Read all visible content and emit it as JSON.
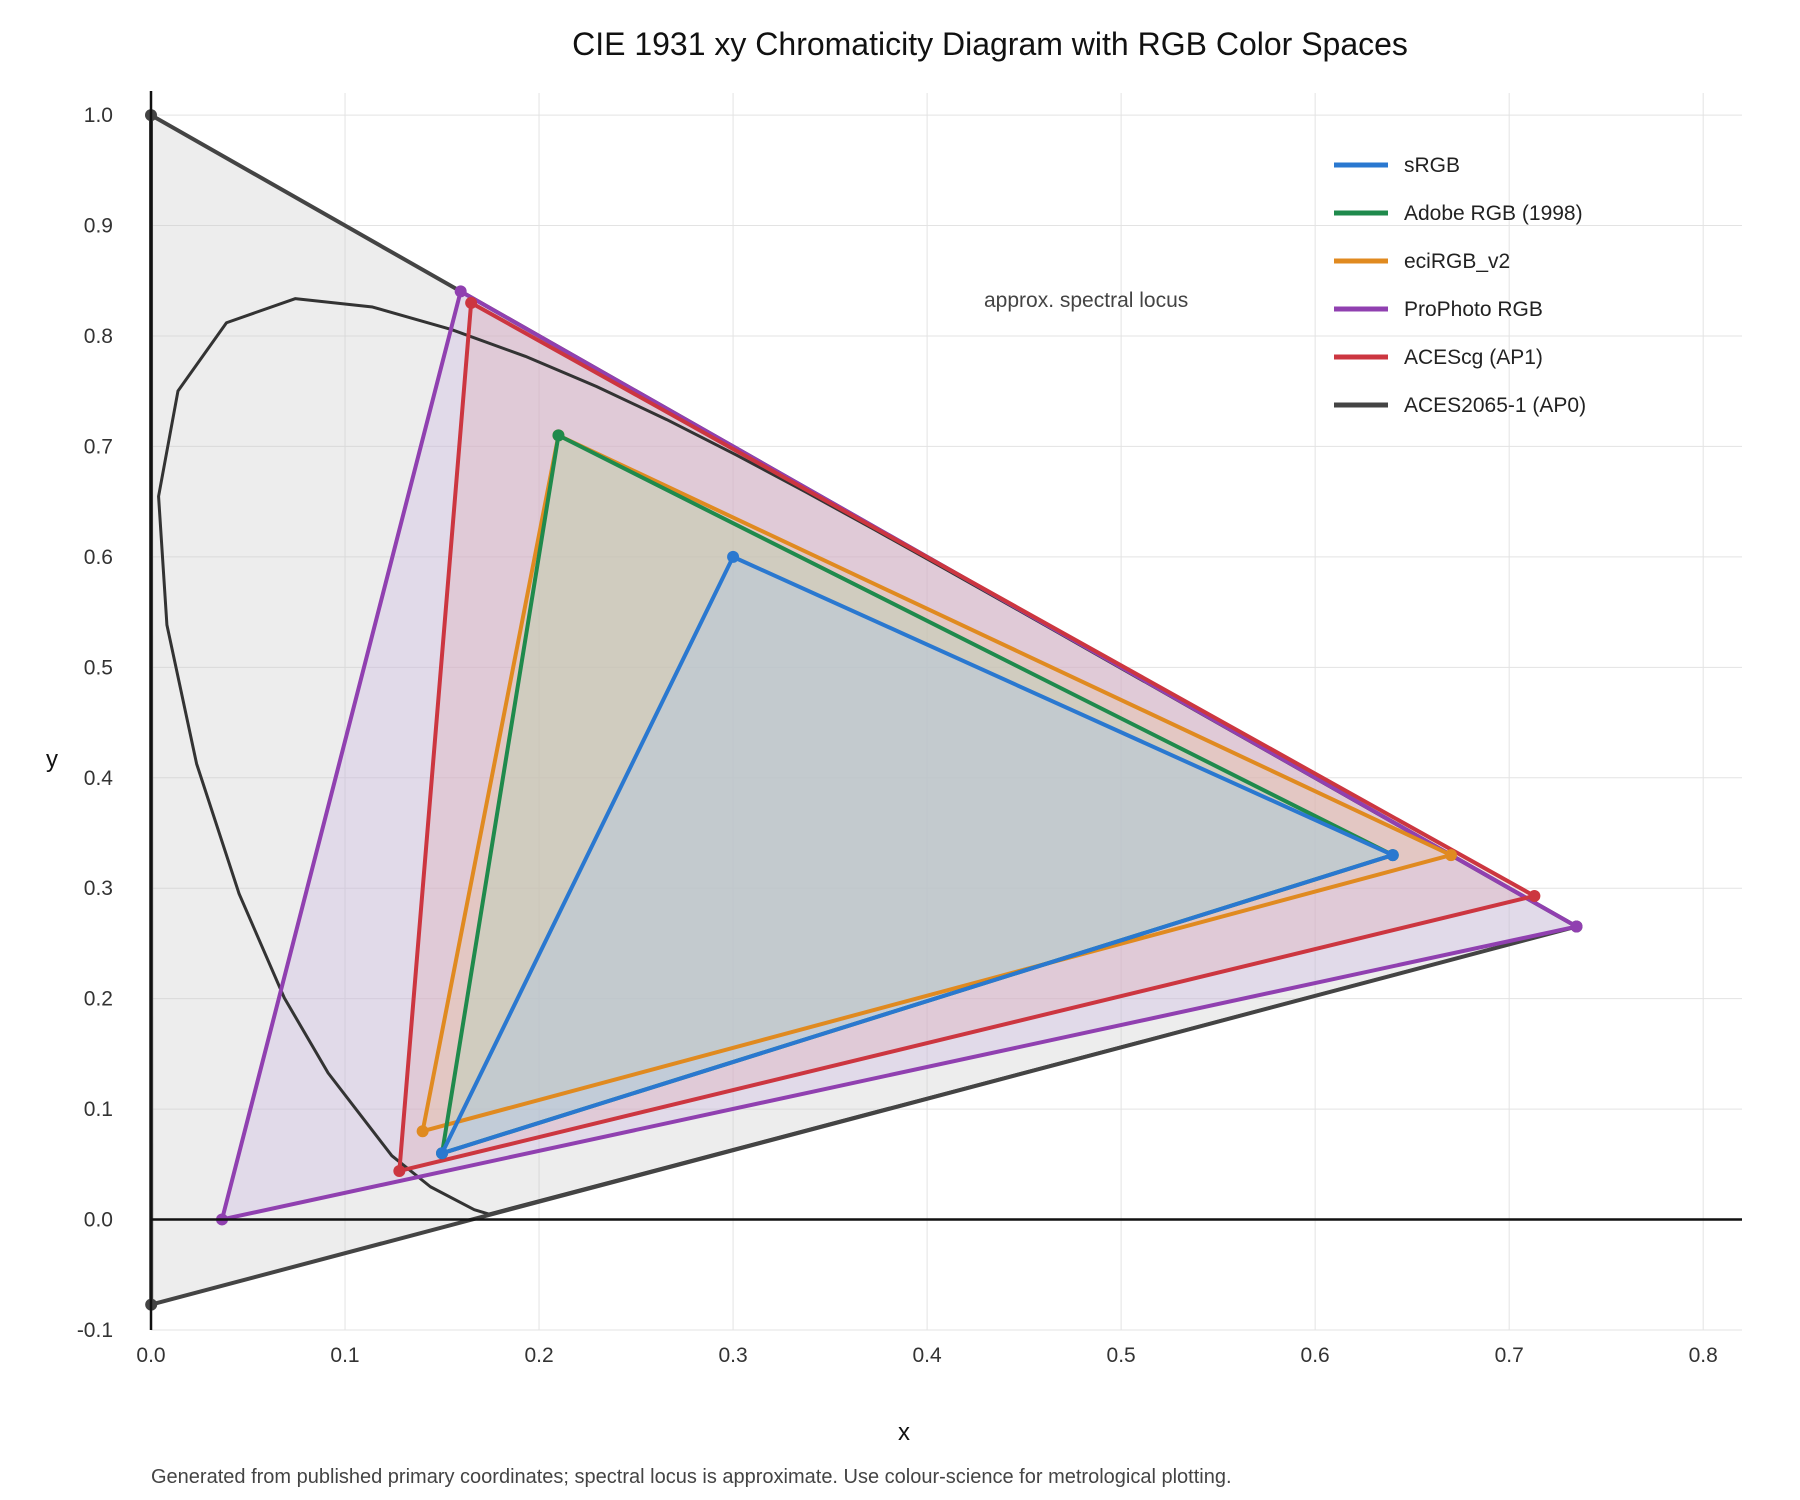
{
  "chart_data": {
    "type": "scatter",
    "title": "CIE 1931 xy Chromaticity Diagram with RGB Color Spaces",
    "xlabel": "x",
    "ylabel": "y",
    "xlim": [
      0.0,
      0.82
    ],
    "ylim": [
      -0.1,
      1.02
    ],
    "x_ticks": [
      0.0,
      0.1,
      0.2,
      0.3,
      0.4,
      0.5,
      0.6,
      0.7,
      0.8
    ],
    "y_ticks": [
      -0.1,
      0.0,
      0.1,
      0.2,
      0.3,
      0.4,
      0.5,
      0.6,
      0.7,
      0.8,
      0.9,
      1.0
    ],
    "x_tick_labels": [
      "0.0",
      "0.1",
      "0.2",
      "0.3",
      "0.4",
      "0.5",
      "0.6",
      "0.7",
      "0.8"
    ],
    "y_tick_labels": [
      "-0.1",
      "0.0",
      "0.1",
      "0.2",
      "0.3",
      "0.4",
      "0.5",
      "0.6",
      "0.7",
      "0.8",
      "0.9",
      "1.0"
    ],
    "grid": true,
    "legend_position": "top-right",
    "annotation": "approx. spectral locus",
    "footnote": "Generated from published primary coordinates; spectral locus is approximate. Use colour-science for metrological plotting.",
    "spectral_locus": {
      "x": [
        0.1741,
        0.1666,
        0.144,
        0.1241,
        0.0913,
        0.0687,
        0.0454,
        0.0235,
        0.0082,
        0.0039,
        0.0139,
        0.0389,
        0.0743,
        0.1142,
        0.1547,
        0.1929,
        0.2296,
        0.2658,
        0.3016,
        0.3373,
        0.3731,
        0.4087,
        0.4441,
        0.4788,
        0.5125,
        0.5448,
        0.5752,
        0.6029,
        0.627,
        0.6482,
        0.6658,
        0.6801,
        0.6915,
        0.7006,
        0.7079,
        0.714,
        0.719,
        0.723,
        0.726,
        0.7347,
        0.1741
      ],
      "y": [
        0.005,
        0.0089,
        0.0297,
        0.0578,
        0.1327,
        0.2007,
        0.295,
        0.4127,
        0.5384,
        0.6548,
        0.7502,
        0.812,
        0.8338,
        0.8262,
        0.8059,
        0.7816,
        0.7543,
        0.7243,
        0.6923,
        0.6589,
        0.6245,
        0.5896,
        0.5547,
        0.5202,
        0.4866,
        0.4544,
        0.4242,
        0.3965,
        0.3725,
        0.3514,
        0.334,
        0.3197,
        0.3083,
        0.2993,
        0.292,
        0.2859,
        0.2809,
        0.277,
        0.274,
        0.2653,
        0.005
      ],
      "color": "#333333"
    },
    "series": [
      {
        "name": "ACES2065-1 (AP0)",
        "color": "#444444",
        "fill": "#c8c8c8",
        "x": [
          0.7347,
          0.0,
          0.0001
        ],
        "y": [
          0.2653,
          1.0,
          -0.077
        ]
      },
      {
        "name": "ProPhoto RGB",
        "color": "#9040b0",
        "fill": "#c8b0e0",
        "x": [
          0.7347,
          0.1596,
          0.0366
        ],
        "y": [
          0.2653,
          0.8404,
          0.0001
        ]
      },
      {
        "name": "ACEScg (AP1)",
        "color": "#cc3640",
        "fill": "#e0a8b0",
        "x": [
          0.713,
          0.165,
          0.128
        ],
        "y": [
          0.293,
          0.83,
          0.044
        ]
      },
      {
        "name": "eciRGB_v2",
        "color": "#e08a20",
        "fill": "#e8c098",
        "x": [
          0.67,
          0.21,
          0.14
        ],
        "y": [
          0.33,
          0.71,
          0.08
        ]
      },
      {
        "name": "Adobe RGB (1998)",
        "color": "#1f8a4c",
        "fill": "#a8d8b8",
        "x": [
          0.64,
          0.21,
          0.15
        ],
        "y": [
          0.33,
          0.71,
          0.06
        ]
      },
      {
        "name": "sRGB",
        "color": "#2a78d0",
        "fill": "#a8c8f0",
        "x": [
          0.64,
          0.3,
          0.15
        ],
        "y": [
          0.33,
          0.6,
          0.06
        ]
      }
    ],
    "legend_order": [
      "sRGB",
      "Adobe RGB (1998)",
      "eciRGB_v2",
      "ProPhoto RGB",
      "ACEScg (AP1)",
      "ACES2065-1 (AP0)"
    ]
  }
}
